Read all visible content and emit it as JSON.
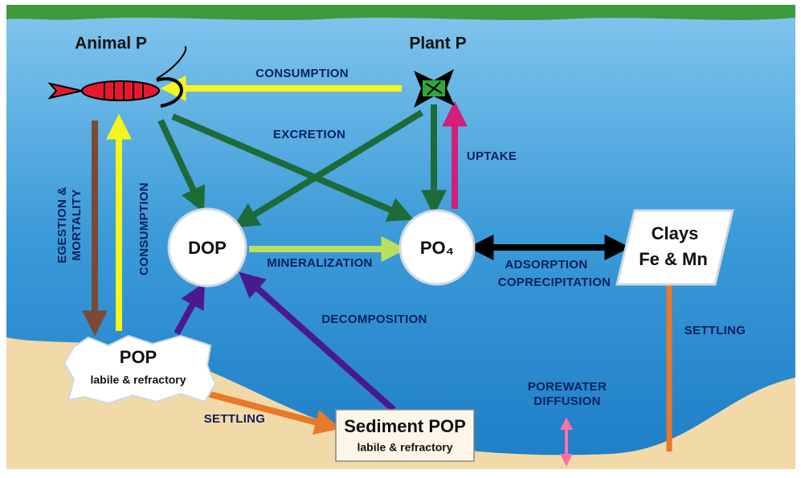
{
  "nodes": [
    {
      "label": "Animal P"
    },
    {
      "label": "Plant P"
    },
    {
      "label": "DOP"
    },
    {
      "label": "PO₄"
    },
    {
      "label": "Clays",
      "sublabel": "Fe & Mn"
    },
    {
      "label": "POP",
      "sublabel": "labile & refractory"
    },
    {
      "label": "Sediment POP",
      "sublabel": "labile & refractory"
    }
  ],
  "processes": [
    {
      "lines": [
        "CONSUMPTION"
      ]
    },
    {
      "lines": [
        "EXCRETION"
      ]
    },
    {
      "lines": [
        "UPTAKE"
      ]
    },
    {
      "lines": [
        "EGESTION &",
        "MORTALITY"
      ]
    },
    {
      "lines": [
        "CONSUMPTION"
      ]
    },
    {
      "lines": [
        "MINERALIZATION"
      ]
    },
    {
      "lines": [
        "ADSORPTION",
        "COPRECIPITATION"
      ]
    },
    {
      "lines": [
        "DECOMPOSITION"
      ]
    },
    {
      "lines": [
        "SETTLING"
      ]
    },
    {
      "lines": [
        "SETTLING"
      ]
    },
    {
      "lines": [
        "POREWATER",
        "DIFFUSION"
      ]
    }
  ]
}
